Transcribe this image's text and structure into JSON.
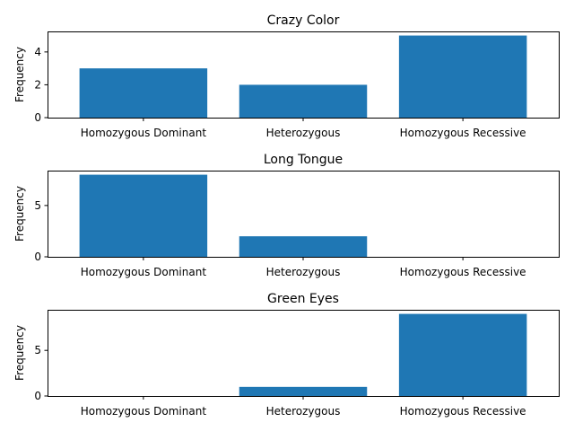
{
  "colors": {
    "bar": "#1f77b4",
    "frame": "#000000"
  },
  "chart_data": [
    {
      "type": "bar",
      "title": "Crazy Color",
      "xlabel": "",
      "ylabel": "Frequency",
      "categories": [
        "Homozygous Dominant",
        "Heterozygous",
        "Homozygous Recessive"
      ],
      "values": [
        3,
        2,
        5
      ],
      "ylim": [
        0,
        5.25
      ],
      "yticks": [
        0,
        2,
        4
      ],
      "grid": false,
      "legend": "none"
    },
    {
      "type": "bar",
      "title": "Long Tongue",
      "xlabel": "",
      "ylabel": "Frequency",
      "categories": [
        "Homozygous Dominant",
        "Heterozygous",
        "Homozygous Recessive"
      ],
      "values": [
        8,
        2,
        0
      ],
      "ylim": [
        0,
        8.4
      ],
      "yticks": [
        0,
        5
      ],
      "grid": false,
      "legend": "none"
    },
    {
      "type": "bar",
      "title": "Green Eyes",
      "xlabel": "",
      "ylabel": "Frequency",
      "categories": [
        "Homozygous Dominant",
        "Heterozygous",
        "Homozygous Recessive"
      ],
      "values": [
        0,
        1,
        9
      ],
      "ylim": [
        0,
        9.45
      ],
      "yticks": [
        0,
        5
      ],
      "grid": false,
      "legend": "none"
    }
  ]
}
